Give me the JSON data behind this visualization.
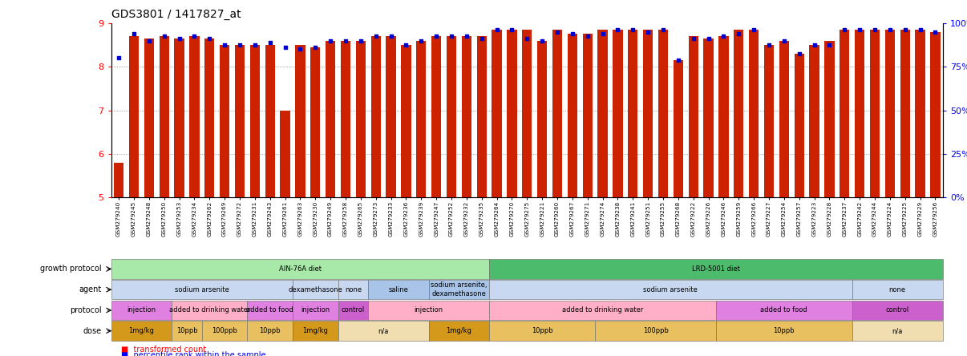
{
  "title": "GDS3801 / 1417827_at",
  "samples": [
    "GSM279240",
    "GSM279245",
    "GSM279248",
    "GSM279250",
    "GSM279253",
    "GSM279234",
    "GSM279262",
    "GSM279269",
    "GSM279272",
    "GSM279231",
    "GSM279243",
    "GSM279261",
    "GSM279263",
    "GSM279230",
    "GSM279249",
    "GSM279258",
    "GSM279265",
    "GSM279273",
    "GSM279233",
    "GSM279236",
    "GSM279239",
    "GSM279247",
    "GSM279252",
    "GSM279232",
    "GSM279235",
    "GSM279264",
    "GSM279270",
    "GSM279275",
    "GSM279221",
    "GSM279260",
    "GSM279267",
    "GSM279271",
    "GSM279274",
    "GSM279238",
    "GSM279241",
    "GSM279251",
    "GSM279255",
    "GSM279268",
    "GSM279222",
    "GSM279226",
    "GSM279246",
    "GSM279259",
    "GSM279266",
    "GSM279227",
    "GSM279254",
    "GSM279257",
    "GSM279223",
    "GSM279228",
    "GSM279237",
    "GSM279242",
    "GSM279244",
    "GSM279224",
    "GSM279225",
    "GSM279229",
    "GSM279256"
  ],
  "bar_values": [
    5.8,
    8.7,
    8.65,
    8.7,
    8.65,
    8.7,
    8.65,
    8.5,
    8.5,
    8.5,
    8.5,
    7.0,
    8.5,
    8.45,
    8.6,
    8.6,
    8.6,
    8.7,
    8.7,
    8.5,
    8.6,
    8.7,
    8.7,
    8.7,
    8.7,
    8.85,
    8.85,
    8.85,
    8.6,
    8.85,
    8.75,
    8.75,
    8.85,
    8.85,
    8.85,
    8.85,
    8.85,
    8.15,
    8.7,
    8.65,
    8.7,
    8.85,
    8.85,
    8.5,
    8.6,
    8.3,
    8.5,
    8.6,
    8.85,
    8.85,
    8.85,
    8.85,
    8.85,
    8.85,
    8.8
  ],
  "percentile_values": [
    8.2,
    8.75,
    8.6,
    8.7,
    8.65,
    8.7,
    8.65,
    8.5,
    8.5,
    8.5,
    8.55,
    8.45,
    8.4,
    8.45,
    8.6,
    8.6,
    8.6,
    8.7,
    8.7,
    8.5,
    8.6,
    8.7,
    8.7,
    8.7,
    8.65,
    8.85,
    8.85,
    8.65,
    8.6,
    8.8,
    8.75,
    8.7,
    8.75,
    8.85,
    8.85,
    8.8,
    8.85,
    8.15,
    8.65,
    8.65,
    8.7,
    8.75,
    8.85,
    8.5,
    8.6,
    8.3,
    8.5,
    8.5,
    8.85,
    8.85,
    8.85,
    8.85,
    8.85,
    8.85,
    8.8
  ],
  "ylim_left": [
    5,
    9
  ],
  "ylim_right": [
    0,
    100
  ],
  "yticks_left": [
    5,
    6,
    7,
    8,
    9
  ],
  "yticks_right": [
    0,
    25,
    50,
    75,
    100
  ],
  "bar_color": "#cc2200",
  "dot_color": "#0000cc",
  "growth_protocol_row": {
    "label": "growth protocol",
    "segments": [
      {
        "text": "AIN-76A diet",
        "start": 0,
        "end": 25,
        "color": "#a8e8a8"
      },
      {
        "text": "LRD-5001 diet",
        "start": 25,
        "end": 55,
        "color": "#4cbb6c"
      }
    ]
  },
  "agent_row": {
    "label": "agent",
    "segments": [
      {
        "text": "sodium arsenite",
        "start": 0,
        "end": 12,
        "color": "#c8d8f0"
      },
      {
        "text": "dexamethasone",
        "start": 12,
        "end": 15,
        "color": "#c8d8f0"
      },
      {
        "text": "none",
        "start": 15,
        "end": 17,
        "color": "#c8d8f0"
      },
      {
        "text": "saline",
        "start": 17,
        "end": 21,
        "color": "#a8c4e8"
      },
      {
        "text": "sodium arsenite,\ndexamethasone",
        "start": 21,
        "end": 25,
        "color": "#a8c4e8"
      },
      {
        "text": "sodium arsenite",
        "start": 25,
        "end": 49,
        "color": "#c8d8f0"
      },
      {
        "text": "none",
        "start": 49,
        "end": 55,
        "color": "#c8d8f0"
      }
    ]
  },
  "protocol_row": {
    "label": "protocol",
    "segments": [
      {
        "text": "injection",
        "start": 0,
        "end": 4,
        "color": "#e080e0"
      },
      {
        "text": "added to drinking water",
        "start": 4,
        "end": 9,
        "color": "#ffb0c8"
      },
      {
        "text": "added to food",
        "start": 9,
        "end": 12,
        "color": "#e080e0"
      },
      {
        "text": "injection",
        "start": 12,
        "end": 15,
        "color": "#e080e0"
      },
      {
        "text": "control",
        "start": 15,
        "end": 17,
        "color": "#cc60cc"
      },
      {
        "text": "injection",
        "start": 17,
        "end": 25,
        "color": "#ffb0c8"
      },
      {
        "text": "added to drinking water",
        "start": 25,
        "end": 40,
        "color": "#ffb0c8"
      },
      {
        "text": "added to food",
        "start": 40,
        "end": 49,
        "color": "#e080e0"
      },
      {
        "text": "control",
        "start": 49,
        "end": 55,
        "color": "#cc60cc"
      }
    ]
  },
  "dose_row": {
    "label": "dose",
    "segments": [
      {
        "text": "1mg/kg",
        "start": 0,
        "end": 4,
        "color": "#d4991a"
      },
      {
        "text": "10ppb",
        "start": 4,
        "end": 6,
        "color": "#e8c060"
      },
      {
        "text": "100ppb",
        "start": 6,
        "end": 9,
        "color": "#e8c060"
      },
      {
        "text": "10ppb",
        "start": 9,
        "end": 12,
        "color": "#e8c060"
      },
      {
        "text": "1mg/kg",
        "start": 12,
        "end": 15,
        "color": "#d4991a"
      },
      {
        "text": "n/a",
        "start": 15,
        "end": 21,
        "color": "#f0deb0"
      },
      {
        "text": "1mg/kg",
        "start": 21,
        "end": 25,
        "color": "#d4991a"
      },
      {
        "text": "10ppb",
        "start": 25,
        "end": 32,
        "color": "#e8c060"
      },
      {
        "text": "100ppb",
        "start": 32,
        "end": 40,
        "color": "#e8c060"
      },
      {
        "text": "10ppb",
        "start": 40,
        "end": 49,
        "color": "#e8c060"
      },
      {
        "text": "n/a",
        "start": 49,
        "end": 55,
        "color": "#f0deb0"
      }
    ]
  },
  "fig_width": 12.06,
  "fig_height": 4.44,
  "dpi": 100
}
